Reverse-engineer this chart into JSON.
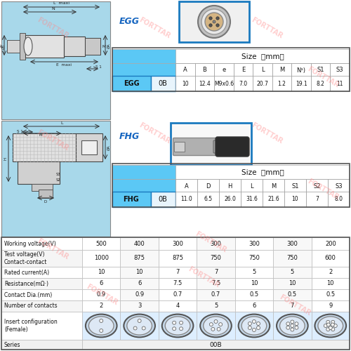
{
  "bg_color": "#ffffff",
  "light_blue": "#a8d8ea",
  "table_blue": "#5bc8f5",
  "dark_blue": "#1565c0",
  "egg_label": "EGG",
  "fhg_label": "FHG",
  "watermark_text": "FORTTAR",
  "egg_size_headers": [
    "A",
    "B",
    "e",
    "E",
    "L",
    "M",
    "N¹)",
    "S1",
    "S3"
  ],
  "egg_size_values": [
    "10",
    "12.4",
    "M9x0.6",
    "7.0",
    "20.7",
    "1.2",
    "19.1",
    "8.2",
    "11"
  ],
  "egg_series": "EGG",
  "egg_type": "0B",
  "fhg_size_headers": [
    "A",
    "D",
    "H",
    "L",
    "M",
    "S1",
    "S2",
    "S3"
  ],
  "fhg_size_values": [
    "11.0",
    "6.5",
    "26.0",
    "31.6",
    "21.6",
    "10",
    "7",
    "8.0"
  ],
  "fhg_series": "FHG",
  "fhg_type": "0B",
  "series_value": "00B",
  "table_rows": [
    {
      "label": "Number of contacts",
      "values": [
        "2",
        "3",
        "4",
        "5",
        "6",
        "7",
        "9"
      ]
    },
    {
      "label": "Contact Dia.(mm)",
      "values": [
        "0.9",
        "0.9",
        "0.7",
        "0.7",
        "0.5",
        "0.5",
        "0.5"
      ]
    },
    {
      "label": "Resistance(mΩ·)",
      "values": [
        "6",
        "6",
        "7.5",
        "7.5",
        "10",
        "10",
        "10"
      ]
    },
    {
      "label": "Rated current(A)",
      "values": [
        "10",
        "10",
        "7",
        "7",
        "5",
        "5",
        "2"
      ]
    },
    {
      "label": "Test voltage(V)\nContact-contact",
      "values": [
        "1000",
        "875",
        "875",
        "750",
        "750",
        "750",
        "600"
      ]
    },
    {
      "label": "Working voltage(V)",
      "values": [
        "500",
        "400",
        "300",
        "300",
        "300",
        "300",
        "200"
      ]
    }
  ],
  "pin_counts": [
    2,
    3,
    4,
    5,
    6,
    7,
    9
  ]
}
